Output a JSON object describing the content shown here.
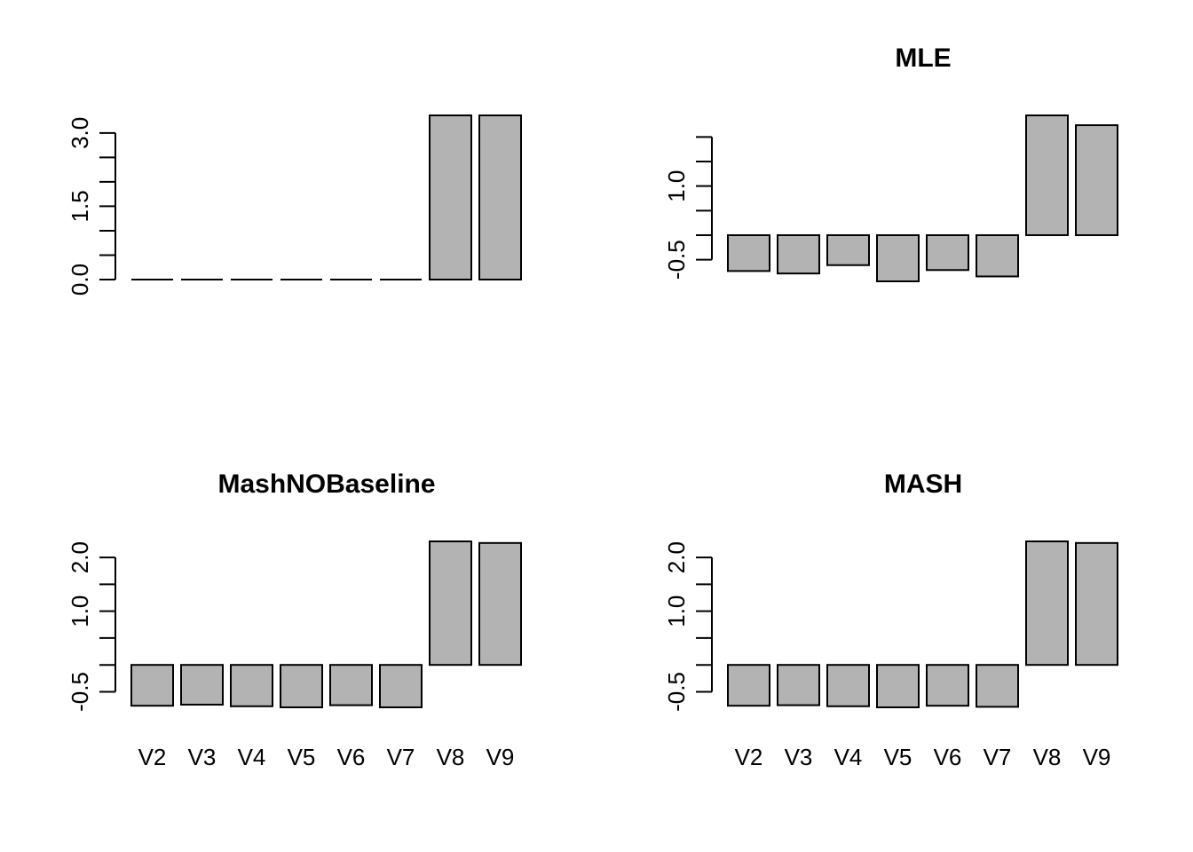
{
  "chart_data": [
    {
      "type": "bar",
      "title": "",
      "categories": [
        "V2",
        "V3",
        "V4",
        "V5",
        "V6",
        "V7",
        "V8",
        "V9"
      ],
      "values": [
        0,
        0,
        0,
        0,
        0,
        0,
        3.36,
        3.36
      ],
      "ylim": [
        0,
        3.36
      ],
      "yticks": [
        0,
        0.5,
        1.0,
        1.5,
        2.0,
        2.5,
        3.0
      ],
      "ytick_labels": [
        "0.0",
        "",
        "",
        "1.5",
        "",
        "",
        "3.0"
      ],
      "show_categories": false,
      "bar_color": "#b3b3b3"
    },
    {
      "type": "bar",
      "title": "MLE",
      "categories": [
        "V2",
        "V3",
        "V4",
        "V5",
        "V6",
        "V7",
        "V8",
        "V9"
      ],
      "values": [
        -0.73,
        -0.78,
        -0.61,
        -0.94,
        -0.71,
        -0.84,
        2.44,
        2.24
      ],
      "ylim": [
        -0.94,
        2.44
      ],
      "yticks": [
        -0.5,
        0,
        0.5,
        1.0,
        1.5,
        2.0
      ],
      "ytick_labels": [
        "-0.5",
        "",
        "",
        "1.0",
        "",
        ""
      ],
      "show_categories": false,
      "bar_color": "#b3b3b3"
    },
    {
      "type": "bar",
      "title": "MashNOBaseline",
      "categories": [
        "V2",
        "V3",
        "V4",
        "V5",
        "V6",
        "V7",
        "V8",
        "V9"
      ],
      "values": [
        -0.76,
        -0.74,
        -0.77,
        -0.79,
        -0.75,
        -0.79,
        2.3,
        2.27
      ],
      "ylim": [
        -0.79,
        2.3
      ],
      "yticks": [
        -0.5,
        0,
        0.5,
        1.0,
        1.5,
        2.0
      ],
      "ytick_labels": [
        "-0.5",
        "",
        "",
        "1.0",
        "",
        "2.0"
      ],
      "show_categories": true,
      "bar_color": "#b3b3b3"
    },
    {
      "type": "bar",
      "title": "MASH",
      "categories": [
        "V2",
        "V3",
        "V4",
        "V5",
        "V6",
        "V7",
        "V8",
        "V9"
      ],
      "values": [
        -0.76,
        -0.75,
        -0.77,
        -0.79,
        -0.76,
        -0.78,
        2.3,
        2.27
      ],
      "ylim": [
        -0.79,
        2.3
      ],
      "yticks": [
        -0.5,
        0,
        0.5,
        1.0,
        1.5,
        2.0
      ],
      "ytick_labels": [
        "-0.5",
        "",
        "",
        "1.0",
        "",
        "2.0"
      ],
      "show_categories": true,
      "bar_color": "#b3b3b3"
    }
  ]
}
